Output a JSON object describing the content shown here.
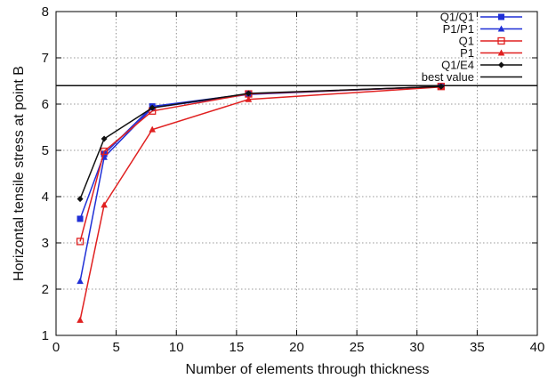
{
  "chart_data": {
    "type": "line",
    "xlabel": "Number of elements through thickness",
    "ylabel": "Horizontal tensile stress at point B",
    "xlim": [
      0,
      40
    ],
    "ylim": [
      1,
      8
    ],
    "xticks": [
      0,
      5,
      10,
      15,
      20,
      25,
      30,
      35,
      40
    ],
    "yticks": [
      1,
      2,
      3,
      4,
      5,
      6,
      7,
      8
    ],
    "grid": true,
    "legend_position": "top-right",
    "series": [
      {
        "name": "Q1/Q1",
        "color": "#1f2fd6",
        "marker": "filled-square",
        "x": [
          2,
          4,
          8,
          16,
          32
        ],
        "y": [
          3.52,
          4.92,
          5.95,
          6.22,
          6.38
        ]
      },
      {
        "name": "P1/P1",
        "color": "#1f2fd6",
        "marker": "filled-triangle",
        "x": [
          2,
          4,
          8,
          16,
          32
        ],
        "y": [
          2.17,
          4.85,
          5.92,
          6.21,
          6.38
        ]
      },
      {
        "name": "Q1",
        "color": "#e02020",
        "marker": "open-square",
        "x": [
          2,
          4,
          8,
          16,
          32
        ],
        "y": [
          3.03,
          4.98,
          5.85,
          6.22,
          6.38
        ]
      },
      {
        "name": "P1",
        "color": "#e02020",
        "marker": "filled-triangle",
        "x": [
          2,
          4,
          8,
          16,
          32
        ],
        "y": [
          1.33,
          3.82,
          5.45,
          6.1,
          6.37
        ]
      },
      {
        "name": "Q1/E4",
        "color": "#111111",
        "marker": "diamond",
        "x": [
          2,
          4,
          8,
          16,
          32
        ],
        "y": [
          3.95,
          5.25,
          5.92,
          6.23,
          6.38
        ]
      },
      {
        "name": "best value",
        "color": "#111111",
        "marker": "none",
        "hline": 6.4
      }
    ]
  }
}
